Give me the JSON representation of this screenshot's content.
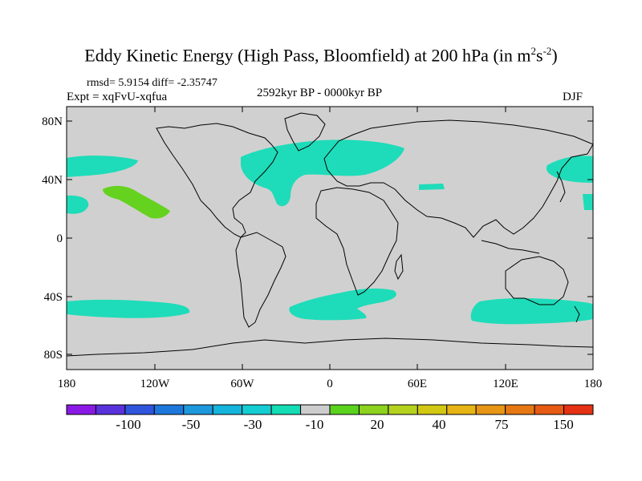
{
  "title": {
    "text": "Eddy Kinetic Energy (High Pass, Bloomfield) at 200 hPa (in m",
    "sup1": "2",
    "mid": "s",
    "sup2": "-2",
    "end": ")"
  },
  "stats": {
    "rmsd_line": "rmsd= 5.9154 diff= -2.35747",
    "expt_line": "Expt = xqFvU-xqfua",
    "period": "2592kyr BP - 0000kyr BP",
    "season": "DJF"
  },
  "axes": {
    "lat_labels": [
      "80N",
      "40N",
      "0",
      "40S",
      "80S"
    ],
    "lon_labels": [
      "180",
      "120W",
      "60W",
      "0",
      "60E",
      "120E",
      "180"
    ]
  },
  "colorbar": {
    "colors": [
      "#8a19e6",
      "#5a32dc",
      "#2f55dc",
      "#1e78dc",
      "#1e98dc",
      "#14b4dc",
      "#14cdd2",
      "#14dcb4",
      "#cdcdcd",
      "#5ad21e",
      "#8cd21e",
      "#b4d21e",
      "#d2c814",
      "#e6b414",
      "#e69614",
      "#e67814",
      "#e65a14",
      "#e63214"
    ],
    "labels": [
      "-100",
      "-50",
      "-30",
      "-10",
      "20",
      "40",
      "75",
      "150"
    ]
  },
  "colors": {
    "ocean_land": "#d0d0d0",
    "anomaly_teal": "#1edcb9",
    "anomaly_green": "#64d21e",
    "coast": "#000000"
  }
}
